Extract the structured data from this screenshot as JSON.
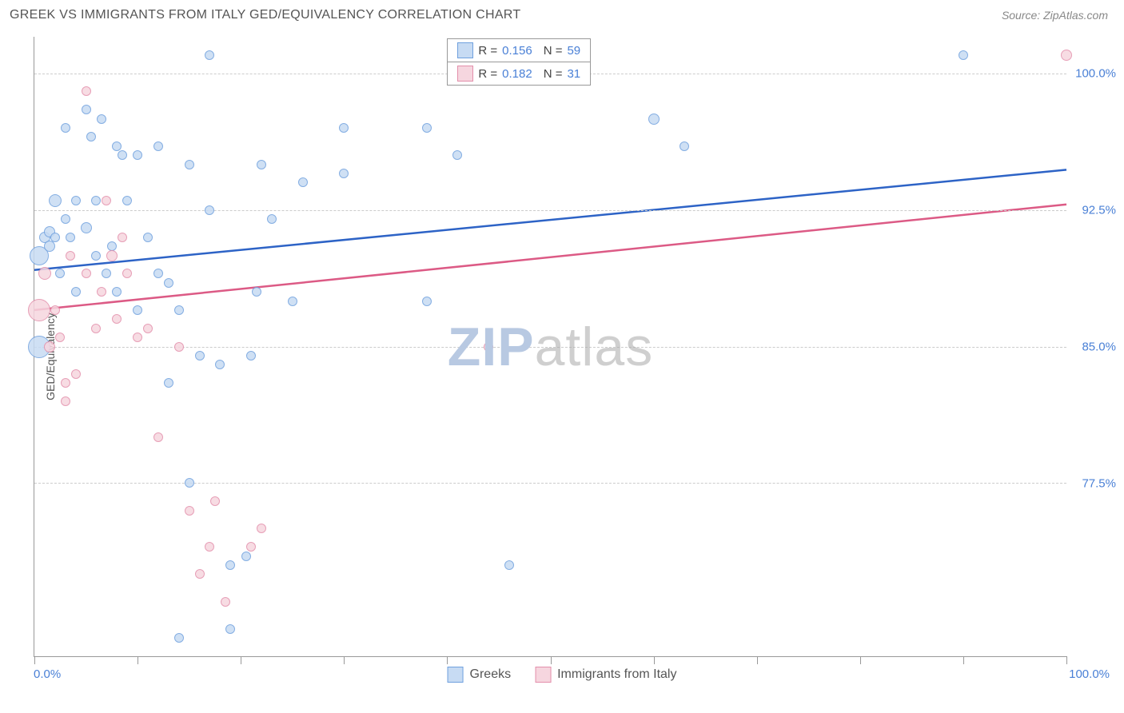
{
  "header": {
    "title": "GREEK VS IMMIGRANTS FROM ITALY GED/EQUIVALENCY CORRELATION CHART",
    "source": "Source: ZipAtlas.com"
  },
  "watermark": {
    "bold": "ZIP",
    "thin": "atlas"
  },
  "chart": {
    "type": "scatter",
    "ylabel": "GED/Equivalency",
    "xlim": [
      0,
      100
    ],
    "ylim": [
      68,
      102
    ],
    "x_ticks": [
      0,
      10,
      20,
      30,
      40,
      50,
      60,
      70,
      80,
      90,
      100
    ],
    "x_tick_labels_shown": {
      "0": "0.0%",
      "100": "100.0%"
    },
    "y_ticks": [
      77.5,
      85.0,
      92.5,
      100.0
    ],
    "y_tick_labels": [
      "77.5%",
      "85.0%",
      "92.5%",
      "100.0%"
    ],
    "background_color": "#ffffff",
    "grid_color": "#cccccc",
    "axis_color": "#999999",
    "series": [
      {
        "name": "Greeks",
        "color_fill": "#c7dbf3",
        "color_stroke": "#6fa0de",
        "trend_color": "#2d63c6",
        "R": "0.156",
        "N": "59",
        "trend": {
          "x1": 0,
          "y1": 89.2,
          "x2": 100,
          "y2": 94.7
        },
        "points": [
          {
            "x": 0.5,
            "y": 90,
            "r": 12
          },
          {
            "x": 0.5,
            "y": 85,
            "r": 14
          },
          {
            "x": 1,
            "y": 91,
            "r": 7
          },
          {
            "x": 1.5,
            "y": 90.5,
            "r": 7
          },
          {
            "x": 1.5,
            "y": 91.3,
            "r": 7
          },
          {
            "x": 2,
            "y": 93,
            "r": 8
          },
          {
            "x": 2,
            "y": 91,
            "r": 6
          },
          {
            "x": 2.5,
            "y": 89,
            "r": 6
          },
          {
            "x": 3,
            "y": 92,
            "r": 6
          },
          {
            "x": 3,
            "y": 97,
            "r": 6
          },
          {
            "x": 3.5,
            "y": 91,
            "r": 6
          },
          {
            "x": 4,
            "y": 93,
            "r": 6
          },
          {
            "x": 4,
            "y": 88,
            "r": 6
          },
          {
            "x": 5,
            "y": 98,
            "r": 6
          },
          {
            "x": 5,
            "y": 91.5,
            "r": 7
          },
          {
            "x": 5.5,
            "y": 96.5,
            "r": 6
          },
          {
            "x": 6,
            "y": 90,
            "r": 6
          },
          {
            "x": 6,
            "y": 93,
            "r": 6
          },
          {
            "x": 6.5,
            "y": 97.5,
            "r": 6
          },
          {
            "x": 7,
            "y": 89,
            "r": 6
          },
          {
            "x": 7.5,
            "y": 90.5,
            "r": 6
          },
          {
            "x": 8,
            "y": 96,
            "r": 6
          },
          {
            "x": 8,
            "y": 88,
            "r": 6
          },
          {
            "x": 8.5,
            "y": 95.5,
            "r": 6
          },
          {
            "x": 9,
            "y": 93,
            "r": 6
          },
          {
            "x": 10,
            "y": 87,
            "r": 6
          },
          {
            "x": 10,
            "y": 95.5,
            "r": 6
          },
          {
            "x": 11,
            "y": 91,
            "r": 6
          },
          {
            "x": 12,
            "y": 89,
            "r": 6
          },
          {
            "x": 12,
            "y": 96,
            "r": 6
          },
          {
            "x": 13,
            "y": 88.5,
            "r": 6
          },
          {
            "x": 13,
            "y": 83,
            "r": 6
          },
          {
            "x": 14,
            "y": 87,
            "r": 6
          },
          {
            "x": 14,
            "y": 69,
            "r": 6
          },
          {
            "x": 15,
            "y": 95,
            "r": 6
          },
          {
            "x": 15,
            "y": 77.5,
            "r": 6
          },
          {
            "x": 16,
            "y": 84.5,
            "r": 6
          },
          {
            "x": 17,
            "y": 92.5,
            "r": 6
          },
          {
            "x": 17,
            "y": 101,
            "r": 6
          },
          {
            "x": 18,
            "y": 84,
            "r": 6
          },
          {
            "x": 19,
            "y": 73,
            "r": 6
          },
          {
            "x": 19,
            "y": 69.5,
            "r": 6
          },
          {
            "x": 20.5,
            "y": 73.5,
            "r": 6
          },
          {
            "x": 21,
            "y": 84.5,
            "r": 6
          },
          {
            "x": 21.5,
            "y": 88,
            "r": 6
          },
          {
            "x": 22,
            "y": 95,
            "r": 6
          },
          {
            "x": 23,
            "y": 92,
            "r": 6
          },
          {
            "x": 25,
            "y": 87.5,
            "r": 6
          },
          {
            "x": 26,
            "y": 94,
            "r": 6
          },
          {
            "x": 30,
            "y": 97,
            "r": 6
          },
          {
            "x": 30,
            "y": 94.5,
            "r": 6
          },
          {
            "x": 38,
            "y": 97,
            "r": 6
          },
          {
            "x": 38,
            "y": 87.5,
            "r": 6
          },
          {
            "x": 41,
            "y": 95.5,
            "r": 6
          },
          {
            "x": 42,
            "y": 101,
            "r": 6
          },
          {
            "x": 46,
            "y": 73,
            "r": 6
          },
          {
            "x": 60,
            "y": 97.5,
            "r": 7
          },
          {
            "x": 63,
            "y": 96,
            "r": 6
          },
          {
            "x": 90,
            "y": 101,
            "r": 6
          }
        ]
      },
      {
        "name": "Immigrants from Italy",
        "color_fill": "#f6d6df",
        "color_stroke": "#e38fab",
        "trend_color": "#dc5a85",
        "R": "0.182",
        "N": "31",
        "trend": {
          "x1": 0,
          "y1": 87.0,
          "x2": 100,
          "y2": 92.8
        },
        "points": [
          {
            "x": 0.5,
            "y": 87,
            "r": 14
          },
          {
            "x": 1,
            "y": 89,
            "r": 8
          },
          {
            "x": 1.5,
            "y": 85,
            "r": 7
          },
          {
            "x": 2,
            "y": 87,
            "r": 6
          },
          {
            "x": 2.5,
            "y": 85.5,
            "r": 6
          },
          {
            "x": 3,
            "y": 83,
            "r": 6
          },
          {
            "x": 3,
            "y": 82,
            "r": 6
          },
          {
            "x": 3.5,
            "y": 90,
            "r": 6
          },
          {
            "x": 4,
            "y": 83.5,
            "r": 6
          },
          {
            "x": 5,
            "y": 89,
            "r": 6
          },
          {
            "x": 5,
            "y": 99,
            "r": 6
          },
          {
            "x": 6,
            "y": 86,
            "r": 6
          },
          {
            "x": 6.5,
            "y": 88,
            "r": 6
          },
          {
            "x": 7,
            "y": 93,
            "r": 6
          },
          {
            "x": 7.5,
            "y": 90,
            "r": 7
          },
          {
            "x": 8,
            "y": 86.5,
            "r": 6
          },
          {
            "x": 8.5,
            "y": 91,
            "r": 6
          },
          {
            "x": 9,
            "y": 89,
            "r": 6
          },
          {
            "x": 10,
            "y": 85.5,
            "r": 6
          },
          {
            "x": 11,
            "y": 86,
            "r": 6
          },
          {
            "x": 12,
            "y": 80,
            "r": 6
          },
          {
            "x": 14,
            "y": 85,
            "r": 6
          },
          {
            "x": 15,
            "y": 76,
            "r": 6
          },
          {
            "x": 16,
            "y": 72.5,
            "r": 6
          },
          {
            "x": 17,
            "y": 74,
            "r": 6
          },
          {
            "x": 17.5,
            "y": 76.5,
            "r": 6
          },
          {
            "x": 18.5,
            "y": 71,
            "r": 6
          },
          {
            "x": 21,
            "y": 74,
            "r": 6
          },
          {
            "x": 22,
            "y": 75,
            "r": 6
          },
          {
            "x": 44,
            "y": 85,
            "r": 6
          },
          {
            "x": 100,
            "y": 101,
            "r": 7
          }
        ]
      }
    ]
  },
  "legend_bottom": [
    {
      "label": "Greeks",
      "fill": "#c7dbf3",
      "stroke": "#6fa0de"
    },
    {
      "label": "Immigrants from Italy",
      "fill": "#f6d6df",
      "stroke": "#e38fab"
    }
  ]
}
